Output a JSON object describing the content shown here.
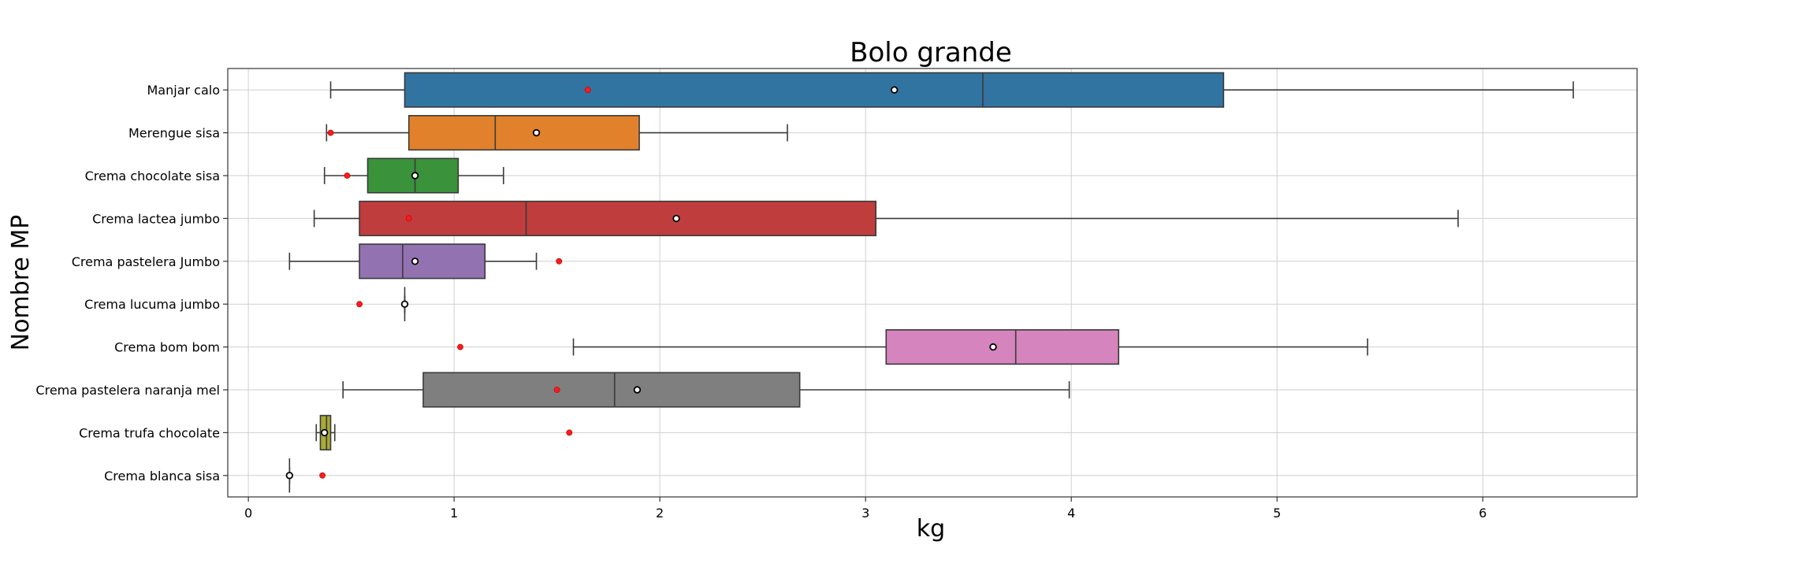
{
  "chart_data": {
    "type": "boxplot",
    "orientation": "horizontal",
    "title": "Bolo grande",
    "xlabel": "kg",
    "ylabel": "Nombre MP",
    "xlim": [
      -0.1,
      6.75
    ],
    "xticks": [
      0,
      1,
      2,
      3,
      4,
      5,
      6
    ],
    "grid": true,
    "categories": [
      "Manjar calo",
      "Merengue sisa",
      "Crema chocolate sisa",
      "Crema lactea jumbo",
      "Crema pastelera Jumbo",
      "Crema lucuma jumbo",
      "Crema bom bom",
      "Crema pastelera naranja mel",
      "Crema trufa chocolate",
      "Crema blanca sisa"
    ],
    "boxes": [
      {
        "name": "Manjar calo",
        "color": "#3274a1",
        "whislo": 0.4,
        "q1": 0.76,
        "med": 3.57,
        "q3": 4.74,
        "whishi": 6.44,
        "mean": 3.14,
        "red_point": 1.65
      },
      {
        "name": "Merengue sisa",
        "color": "#e1812c",
        "whislo": 0.38,
        "q1": 0.78,
        "med": 1.2,
        "q3": 1.9,
        "whishi": 2.62,
        "mean": 1.4,
        "red_point": 0.4
      },
      {
        "name": "Crema chocolate sisa",
        "color": "#3a923a",
        "whislo": 0.37,
        "q1": 0.58,
        "med": 0.81,
        "q3": 1.02,
        "whishi": 1.24,
        "mean": 0.81,
        "red_point": 0.48
      },
      {
        "name": "Crema lactea jumbo",
        "color": "#c03d3e",
        "whislo": 0.32,
        "q1": 0.54,
        "med": 1.35,
        "q3": 3.05,
        "whishi": 5.88,
        "mean": 2.08,
        "red_point": 0.78
      },
      {
        "name": "Crema pastelera Jumbo",
        "color": "#9372b2",
        "whislo": 0.2,
        "q1": 0.54,
        "med": 0.75,
        "q3": 1.15,
        "whishi": 1.4,
        "mean": 0.81,
        "red_point": 1.51
      },
      {
        "name": "Crema lucuma jumbo",
        "color": "#845b53",
        "whislo": 0.76,
        "q1": 0.76,
        "med": 0.76,
        "q3": 0.76,
        "whishi": 0.76,
        "mean": 0.76,
        "red_point": 0.54
      },
      {
        "name": "Crema bom bom",
        "color": "#d684bd",
        "whislo": 1.58,
        "q1": 3.1,
        "med": 3.73,
        "q3": 4.23,
        "whishi": 5.44,
        "mean": 3.62,
        "red_point": 1.03
      },
      {
        "name": "Crema pastelera naranja mel",
        "color": "#7f7f7f",
        "whislo": 0.46,
        "q1": 0.85,
        "med": 1.78,
        "q3": 2.68,
        "whishi": 3.99,
        "mean": 1.89,
        "red_point": 1.5
      },
      {
        "name": "Crema trufa chocolate",
        "color": "#a9aa35",
        "whislo": 0.33,
        "q1": 0.35,
        "med": 0.38,
        "q3": 0.4,
        "whishi": 0.42,
        "mean": 0.37,
        "red_point": 1.56
      },
      {
        "name": "Crema blanca sisa",
        "color": "#2e2e2e",
        "whislo": 0.2,
        "q1": 0.2,
        "med": 0.2,
        "q3": 0.2,
        "whishi": 0.2,
        "mean": 0.2,
        "red_point": 0.36
      }
    ]
  }
}
